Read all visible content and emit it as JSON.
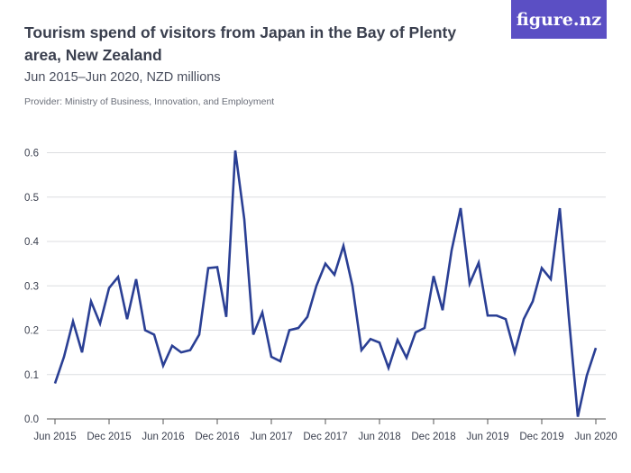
{
  "header": {
    "title": "Tourism spend of visitors from Japan in the Bay of Plenty area, New Zealand",
    "subtitle": "Jun 2015–Jun 2020, NZD millions",
    "provider": "Provider: Ministry of Business, Innovation, and Employment",
    "logo": "figure.nz"
  },
  "chart_data": {
    "type": "line",
    "title": "Tourism spend of visitors from Japan in the Bay of Plenty area, New Zealand",
    "ylabel": "NZD millions",
    "xlabel": "",
    "ylim": [
      0,
      0.6
    ],
    "yticks": [
      "0.0",
      "0.1",
      "0.2",
      "0.3",
      "0.4",
      "0.5",
      "0.6"
    ],
    "xticks": [
      "Jun 2015",
      "Dec 2015",
      "Jun 2016",
      "Dec 2016",
      "Jun 2017",
      "Dec 2017",
      "Jun 2018",
      "Dec 2018",
      "Jun 2019",
      "Dec 2019",
      "Jun 2020"
    ],
    "color": "#2a3f94",
    "grid": true,
    "series": [
      {
        "name": "Japan",
        "values": [
          0.08,
          0.14,
          0.22,
          0.15,
          0.265,
          0.215,
          0.295,
          0.32,
          0.225,
          0.315,
          0.2,
          0.19,
          0.12,
          0.165,
          0.15,
          0.155,
          0.19,
          0.34,
          0.342,
          0.23,
          0.605,
          0.45,
          0.19,
          0.24,
          0.14,
          0.13,
          0.2,
          0.205,
          0.23,
          0.3,
          0.35,
          0.325,
          0.39,
          0.3,
          0.155,
          0.18,
          0.172,
          0.115,
          0.178,
          0.138,
          0.195,
          0.205,
          0.322,
          0.245,
          0.38,
          0.475,
          0.305,
          0.352,
          0.233,
          0.233,
          0.225,
          0.15,
          0.225,
          0.265,
          0.34,
          0.315,
          0.475,
          0.23,
          0.005,
          0.098,
          0.16
        ]
      }
    ]
  }
}
